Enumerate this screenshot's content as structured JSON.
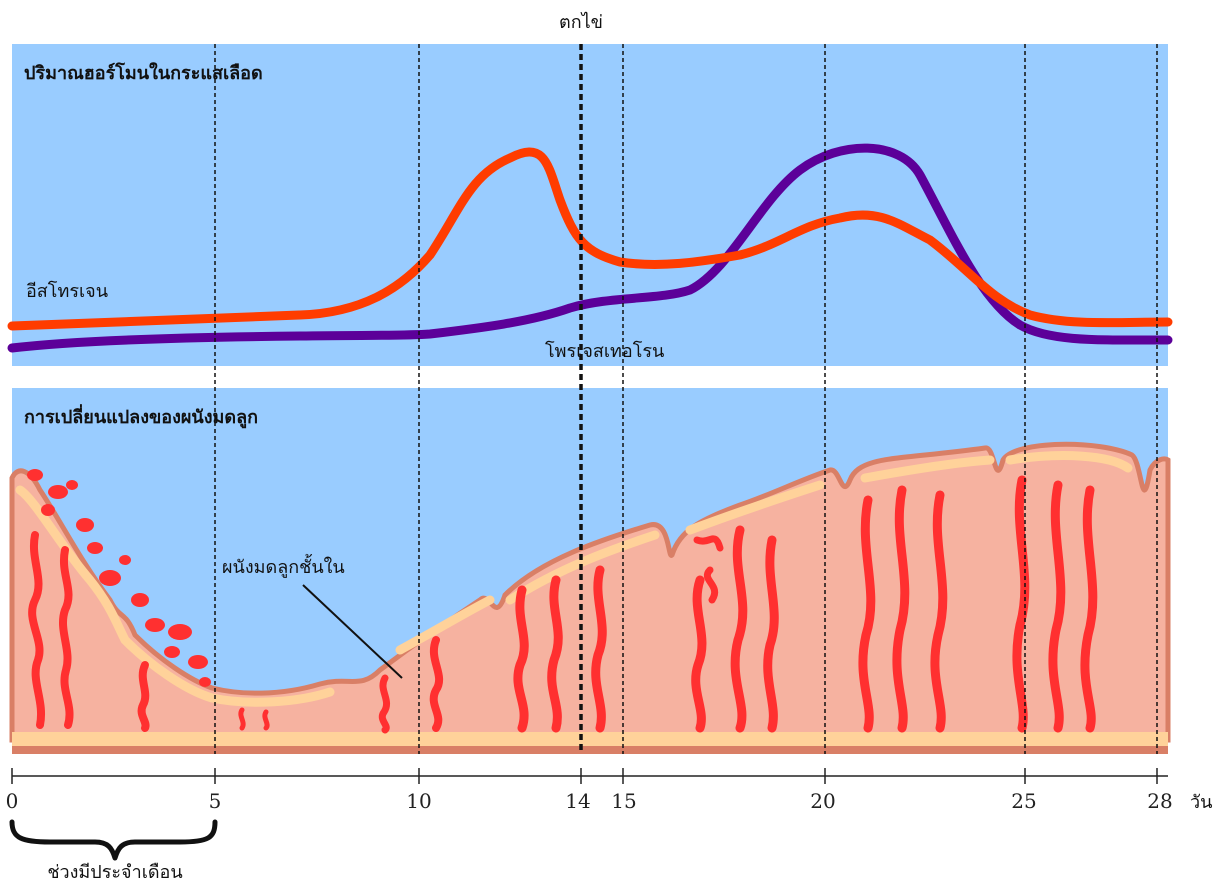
{
  "ovulation_label": "ตกไข่",
  "hormone_panel": {
    "title": "ปริมาณฮอร์โมนในกระแสเลือด",
    "estrogen_label": "อีสโทรเจน",
    "progesterone_label": "โพรเจสเทอโรน"
  },
  "uterus_panel": {
    "title": "การเปลี่ยนแปลงของผนังมดลูก",
    "endometrium_label": "ผนังมดลูกชั้นใน"
  },
  "axis": {
    "ticks": [
      "0",
      "5",
      "10",
      "14",
      "15",
      "20",
      "25",
      "28"
    ],
    "unit": "วัน"
  },
  "menstruation_label": "ช่วงมีประจำเดือน",
  "colors": {
    "sky": "#99ccff",
    "estrogen": "#ff3c00",
    "progesterone": "#5c0099",
    "tissue": "#f6b2a0",
    "tissue_edge": "#d97f66",
    "tissue_outline": "#ffd29a",
    "vessel": "#ff3030"
  }
}
